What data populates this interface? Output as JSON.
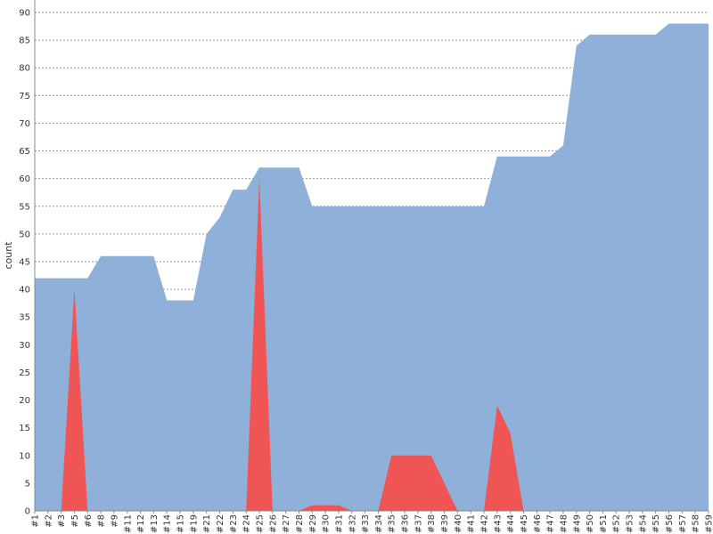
{
  "chart_data": {
    "type": "area",
    "title": "",
    "xlabel": "",
    "ylabel": "count",
    "ylim": [
      0,
      90
    ],
    "yticks": [
      0,
      5,
      10,
      15,
      20,
      25,
      30,
      35,
      40,
      45,
      50,
      55,
      60,
      65,
      70,
      75,
      80,
      85,
      90
    ],
    "grid": true,
    "legend": "none",
    "categories": [
      "#1",
      "#2",
      "#3",
      "#5",
      "#6",
      "#8",
      "#9",
      "#11",
      "#12",
      "#13",
      "#14",
      "#15",
      "#19",
      "#21",
      "#22",
      "#23",
      "#24",
      "#25",
      "#26",
      "#27",
      "#28",
      "#29",
      "#30",
      "#31",
      "#32",
      "#33",
      "#34",
      "#35",
      "#36",
      "#37",
      "#38",
      "#39",
      "#40",
      "#41",
      "#42",
      "#43",
      "#44",
      "#45",
      "#46",
      "#47",
      "#48",
      "#49",
      "#50",
      "#51",
      "#52",
      "#53",
      "#54",
      "#55",
      "#56",
      "#57",
      "#58",
      "#59"
    ],
    "series": [
      {
        "color": "#8eb0d9",
        "values": [
          42,
          42,
          42,
          42,
          42,
          46,
          46,
          46,
          46,
          46,
          38,
          38,
          38,
          50,
          53,
          58,
          58,
          62,
          62,
          62,
          62,
          55,
          55,
          55,
          55,
          55,
          55,
          55,
          55,
          55,
          55,
          55,
          55,
          55,
          55,
          64,
          64,
          64,
          64,
          64,
          66,
          84,
          86,
          86,
          86,
          86,
          86,
          86,
          88,
          88,
          88,
          88
        ]
      },
      {
        "color": "#f05555",
        "values": [
          0,
          0,
          0,
          40,
          0,
          0,
          0,
          0,
          0,
          0,
          0,
          0,
          0,
          0,
          0,
          0,
          0,
          60,
          0,
          0,
          0,
          1,
          1,
          1,
          0,
          0,
          0,
          10,
          10,
          10,
          10,
          5,
          0,
          0,
          0,
          19,
          14,
          0,
          0,
          0,
          0,
          0,
          0,
          0,
          0,
          0,
          0,
          0,
          0,
          0,
          0,
          0
        ]
      }
    ]
  }
}
